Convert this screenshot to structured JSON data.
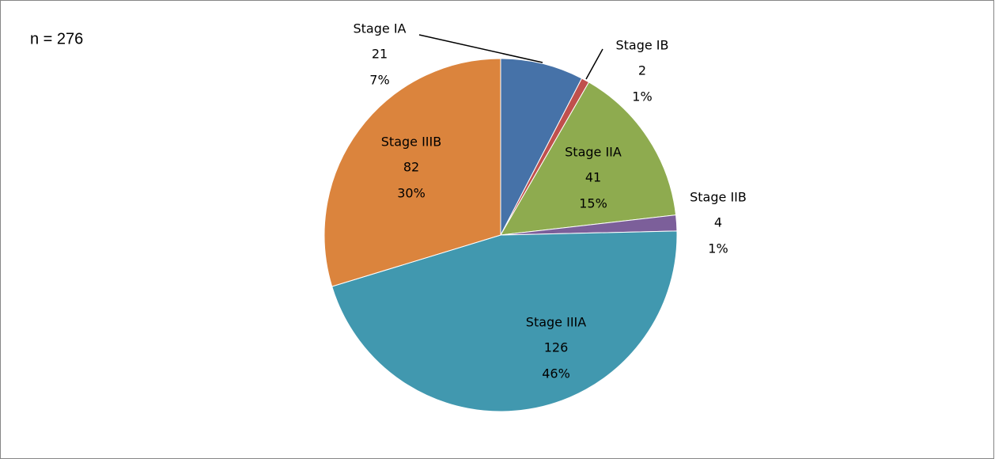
{
  "chart_data": {
    "type": "pie",
    "annotation": "n = 276",
    "categories": [
      "Stage IA",
      "Stage IB",
      "Stage IIA",
      "Stage IIB",
      "Stage IIIA",
      "Stage IIIB"
    ],
    "values": [
      21,
      2,
      41,
      4,
      126,
      82
    ],
    "percent_labels": [
      "7%",
      "1%",
      "15%",
      "1%",
      "46%",
      "30%"
    ],
    "colors": [
      "#4672a8",
      "#c0504d",
      "#8eab4f",
      "#7c5f9a",
      "#4198af",
      "#db843d"
    ]
  }
}
